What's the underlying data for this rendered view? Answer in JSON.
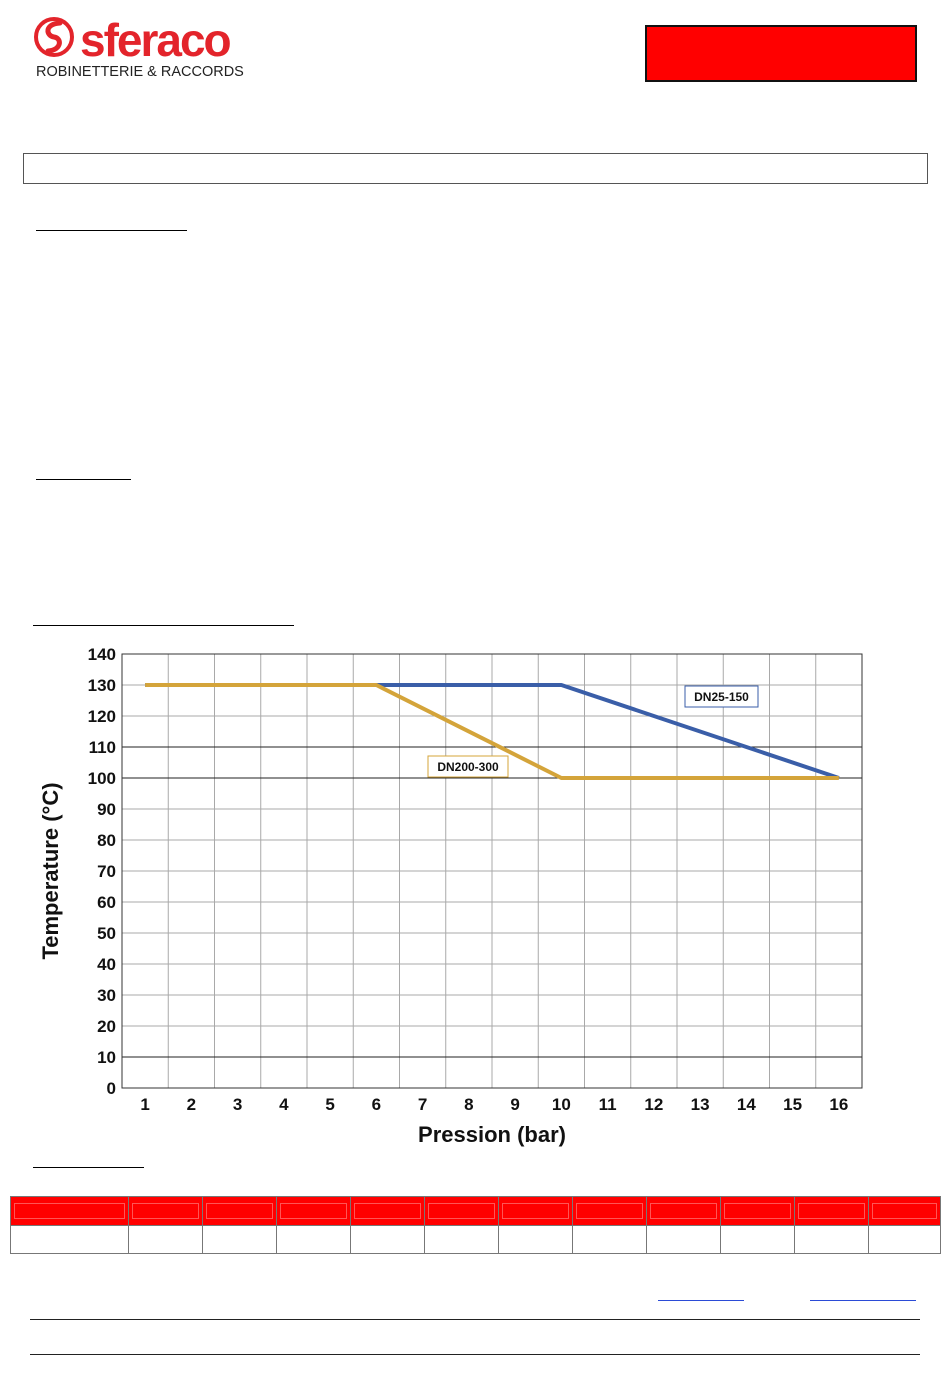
{
  "brand": {
    "name": "sferaco",
    "tagline": "ROBINETTERIE & RACCORDS",
    "color": "#e3242b"
  },
  "chart_data": {
    "type": "line",
    "xlabel": "Pression (bar)",
    "ylabel": "Temperature (°C)",
    "xlim": [
      1,
      16
    ],
    "ylim": [
      0,
      140
    ],
    "x_ticks": [
      1,
      2,
      3,
      4,
      5,
      6,
      7,
      8,
      9,
      10,
      11,
      12,
      13,
      14,
      15,
      16
    ],
    "y_ticks": [
      0,
      10,
      20,
      30,
      40,
      50,
      60,
      70,
      80,
      90,
      100,
      110,
      120,
      130,
      140
    ],
    "grid": true,
    "series": [
      {
        "name": "DN25-150",
        "color": "#3a5ea8",
        "points": [
          [
            1,
            130
          ],
          [
            10,
            130
          ],
          [
            16,
            100
          ]
        ]
      },
      {
        "name": "DN200-300",
        "color": "#d4a43a",
        "points": [
          [
            1,
            130
          ],
          [
            6,
            130
          ],
          [
            10,
            100
          ],
          [
            16,
            100
          ]
        ]
      }
    ]
  }
}
